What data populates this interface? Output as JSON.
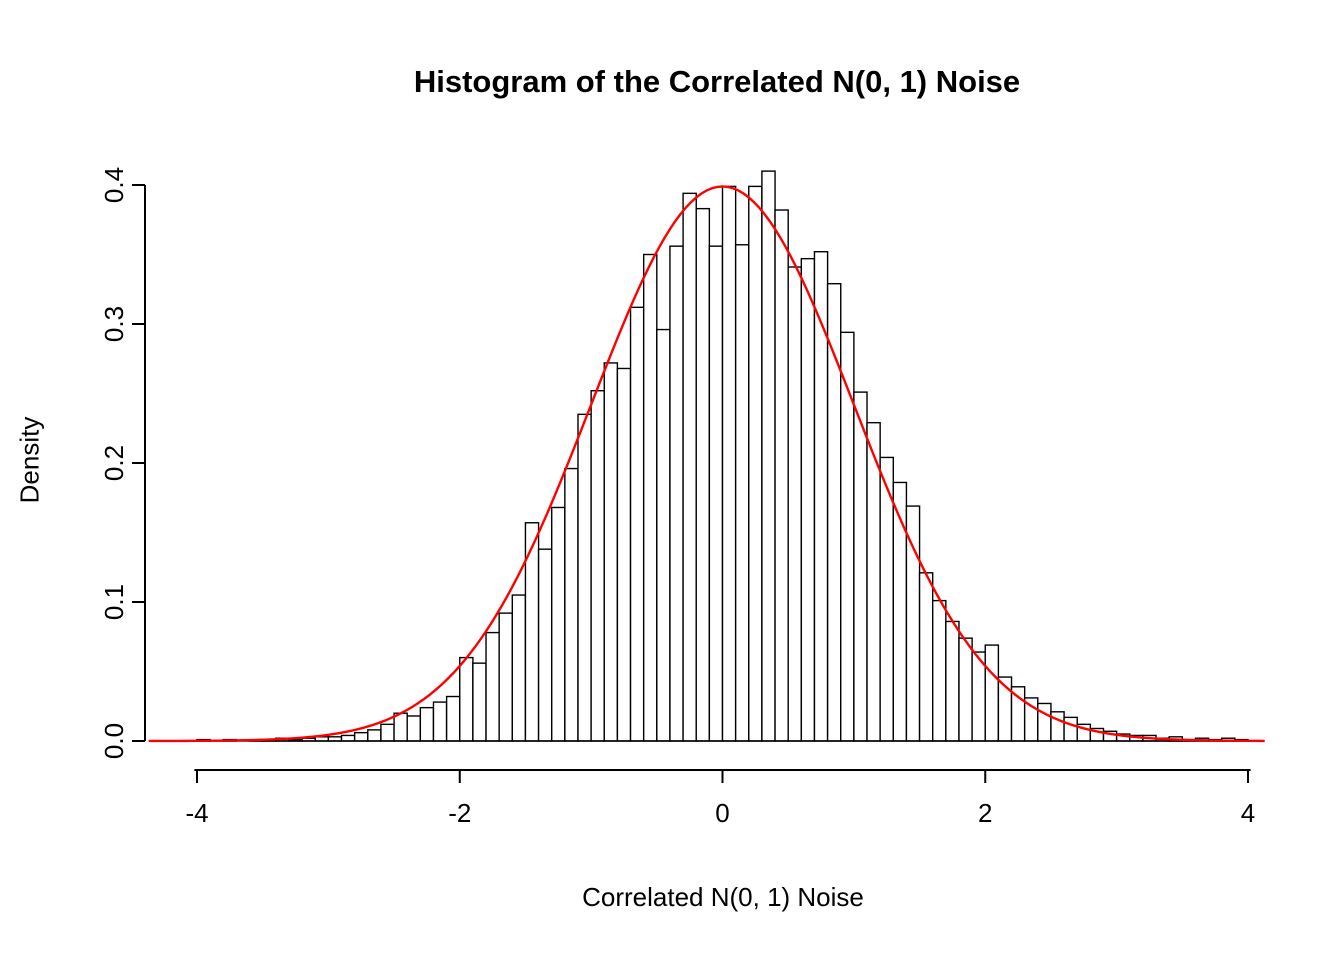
{
  "figure": {
    "title": "Histogram of the Correlated N(0, 1) Noise",
    "xlabel": "Correlated N(0, 1) Noise",
    "ylabel": "Density"
  },
  "chart_data": {
    "type": "bar",
    "subtype": "histogram",
    "title": "Histogram of the Correlated N(0, 1) Noise",
    "xlabel": "Correlated N(0, 1) Noise",
    "ylabel": "Density",
    "xlim": [
      -4.4,
      4.15
    ],
    "ylim": [
      0,
      0.4
    ],
    "x_ticks": [
      -4,
      -2,
      0,
      2,
      4
    ],
    "x_tick_labels": [
      "-4",
      "-2",
      "0",
      "2",
      "4"
    ],
    "y_ticks": [
      0.0,
      0.1,
      0.2,
      0.3,
      0.4
    ],
    "y_tick_labels": [
      "0.0",
      "0.1",
      "0.2",
      "0.3",
      "0.4"
    ],
    "grid": false,
    "legend": "none",
    "bin_start": -4.0,
    "bin_width": 0.1,
    "bins": [
      0.001,
      0.0,
      0.001,
      0.0,
      0.001,
      0.001,
      0.002,
      0.001,
      0.002,
      0.003,
      0.003,
      0.004,
      0.006,
      0.008,
      0.012,
      0.02,
      0.018,
      0.024,
      0.028,
      0.032,
      0.06,
      0.056,
      0.078,
      0.092,
      0.105,
      0.157,
      0.138,
      0.168,
      0.196,
      0.235,
      0.252,
      0.272,
      0.268,
      0.312,
      0.35,
      0.296,
      0.356,
      0.394,
      0.383,
      0.356,
      0.399,
      0.357,
      0.399,
      0.41,
      0.382,
      0.341,
      0.347,
      0.352,
      0.329,
      0.294,
      0.251,
      0.229,
      0.204,
      0.186,
      0.169,
      0.121,
      0.101,
      0.086,
      0.074,
      0.064,
      0.069,
      0.046,
      0.039,
      0.031,
      0.027,
      0.021,
      0.017,
      0.012,
      0.009,
      0.007,
      0.005,
      0.004,
      0.004,
      0.002,
      0.003,
      0.001,
      0.002,
      0.001,
      0.002,
      0.001
    ],
    "bar_fill": "#ffffff",
    "bar_stroke": "#000000",
    "curve": {
      "name": "normal-density-overlay",
      "distribution": "normal",
      "mean": 0,
      "sd": 1,
      "color": "#ff0000",
      "x_range": [
        -4.36,
        4.13
      ]
    },
    "axis_color": "#000000"
  }
}
